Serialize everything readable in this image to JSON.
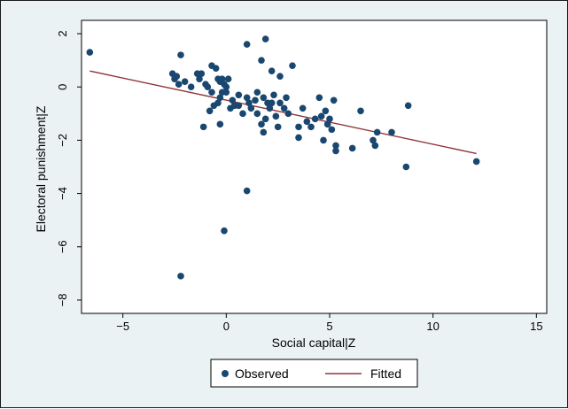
{
  "chart_data": {
    "type": "scatter",
    "title": "",
    "xlabel": "Social capital|Z",
    "ylabel": "Electoral punishment|Z",
    "xlim": [
      -7,
      15.5
    ],
    "ylim": [
      -8.5,
      2.5
    ],
    "xticks": [
      -5,
      0,
      5,
      10,
      15
    ],
    "xtick_labels": [
      "−5",
      "0",
      "5",
      "10",
      "15"
    ],
    "yticks": [
      2,
      0,
      -2,
      -4,
      -6,
      -8
    ],
    "ytick_labels": [
      "2",
      "0",
      "−2",
      "−4",
      "−6",
      "−8"
    ],
    "grid": false,
    "legend_position": "bottom",
    "series": [
      {
        "name": "Observed",
        "kind": "points",
        "color": "#1a476f",
        "points": [
          [
            -6.6,
            1.3
          ],
          [
            -2.2,
            1.2
          ],
          [
            -2.6,
            0.5
          ],
          [
            -2.5,
            0.3
          ],
          [
            -2.3,
            0.1
          ],
          [
            -2.4,
            0.4
          ],
          [
            -2.0,
            0.2
          ],
          [
            -1.7,
            0.0
          ],
          [
            -1.4,
            0.5
          ],
          [
            -1.3,
            0.3
          ],
          [
            -1.2,
            0.5
          ],
          [
            -1.0,
            0.1
          ],
          [
            -0.9,
            0.0
          ],
          [
            -0.7,
            0.8
          ],
          [
            -0.5,
            0.7
          ],
          [
            -0.4,
            0.3
          ],
          [
            -0.3,
            0.2
          ],
          [
            -0.2,
            0.3
          ],
          [
            0.1,
            0.3
          ],
          [
            -0.1,
            0.1
          ],
          [
            0.0,
            0.0
          ],
          [
            -0.2,
            -0.2
          ],
          [
            -0.3,
            -0.4
          ],
          [
            -0.4,
            -0.6
          ],
          [
            -0.6,
            -0.7
          ],
          [
            -0.8,
            -0.9
          ],
          [
            -1.1,
            -1.5
          ],
          [
            -0.3,
            -1.4
          ],
          [
            0.2,
            -0.8
          ],
          [
            0.4,
            -0.7
          ],
          [
            0.6,
            -0.7
          ],
          [
            0.8,
            -1.0
          ],
          [
            1.0,
            -0.4
          ],
          [
            1.1,
            -0.6
          ],
          [
            1.2,
            -0.8
          ],
          [
            1.4,
            -0.5
          ],
          [
            1.5,
            -1.0
          ],
          [
            1.7,
            -1.4
          ],
          [
            1.8,
            -1.7
          ],
          [
            1.9,
            -1.2
          ],
          [
            2.0,
            -0.6
          ],
          [
            2.1,
            -0.8
          ],
          [
            2.3,
            -0.3
          ],
          [
            2.4,
            -1.1
          ],
          [
            2.5,
            -1.5
          ],
          [
            2.6,
            -0.6
          ],
          [
            2.8,
            -0.8
          ],
          [
            3.0,
            -1.0
          ],
          [
            3.2,
            0.8
          ],
          [
            2.6,
            0.4
          ],
          [
            2.2,
            0.6
          ],
          [
            1.7,
            1.0
          ],
          [
            1.0,
            1.6
          ],
          [
            1.9,
            1.8
          ],
          [
            3.5,
            -1.5
          ],
          [
            3.7,
            -0.8
          ],
          [
            3.9,
            -1.3
          ],
          [
            4.1,
            -1.5
          ],
          [
            4.3,
            -1.2
          ],
          [
            4.5,
            -0.4
          ],
          [
            4.7,
            -2.0
          ],
          [
            4.8,
            -0.9
          ],
          [
            4.9,
            -1.4
          ],
          [
            5.0,
            -1.2
          ],
          [
            5.1,
            -1.6
          ],
          [
            5.2,
            -0.5
          ],
          [
            5.3,
            -2.2
          ],
          [
            5.3,
            -2.4
          ],
          [
            6.1,
            -2.3
          ],
          [
            6.5,
            -0.9
          ],
          [
            7.1,
            -2.0
          ],
          [
            7.2,
            -2.2
          ],
          [
            7.3,
            -1.7
          ],
          [
            8.0,
            -1.7
          ],
          [
            8.7,
            -3.0
          ],
          [
            8.8,
            -0.7
          ],
          [
            12.1,
            -2.8
          ],
          [
            1.0,
            -3.9
          ],
          [
            -0.1,
            -5.4
          ],
          [
            -2.2,
            -7.1
          ],
          [
            0.3,
            -0.5
          ],
          [
            0.6,
            -0.3
          ],
          [
            1.5,
            -0.2
          ],
          [
            1.8,
            -0.4
          ],
          [
            2.2,
            -0.6
          ],
          [
            2.9,
            -0.4
          ],
          [
            3.5,
            -1.9
          ],
          [
            4.6,
            -1.1
          ],
          [
            0.0,
            -0.2
          ],
          [
            -0.7,
            -0.2
          ]
        ]
      },
      {
        "name": "Fitted",
        "kind": "line",
        "color": "#90353b",
        "points": [
          [
            -6.6,
            0.6
          ],
          [
            12.1,
            -2.5
          ]
        ]
      }
    ]
  },
  "legend": {
    "observed_label": "Observed",
    "fitted_label": "Fitted"
  }
}
